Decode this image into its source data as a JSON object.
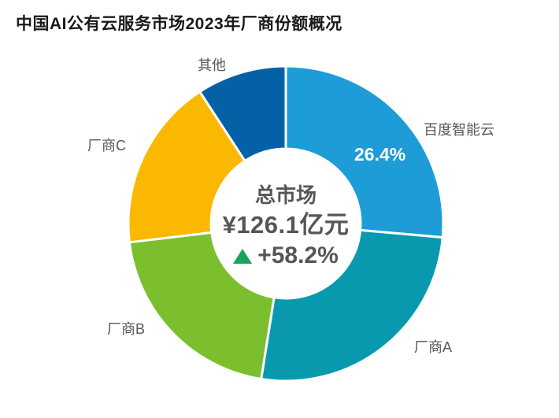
{
  "page": {
    "background": "#ffffff"
  },
  "title": "中国AI公有云服务市场2023年厂商份额概况",
  "chart_data": {
    "type": "pie",
    "subtype": "donut",
    "title": "中国AI公有云服务市场2023年厂商份额概况",
    "start_angle_deg": 0,
    "direction": "clockwise",
    "legend_position": "outside-labels",
    "center": {
      "line1": "总市场",
      "line2": "¥126.1亿元",
      "growth": "+58.2%",
      "growth_direction": "up",
      "growth_color": "#18A45D"
    },
    "segments": [
      {
        "id": "baidu",
        "label": "百度智能云",
        "value": 26.4,
        "value_label": "26.4%",
        "color": "#1E9CD7"
      },
      {
        "id": "vendor-a",
        "label": "厂商A",
        "value": 26.1,
        "color": "#0899AE"
      },
      {
        "id": "vendor-b",
        "label": "厂商B",
        "value": 20.6,
        "color": "#7CBF2E"
      },
      {
        "id": "vendor-c",
        "label": "厂商C",
        "value": 17.7,
        "color": "#FAB900"
      },
      {
        "id": "others",
        "label": "其他",
        "value": 9.2,
        "color": "#0561A5"
      }
    ]
  }
}
